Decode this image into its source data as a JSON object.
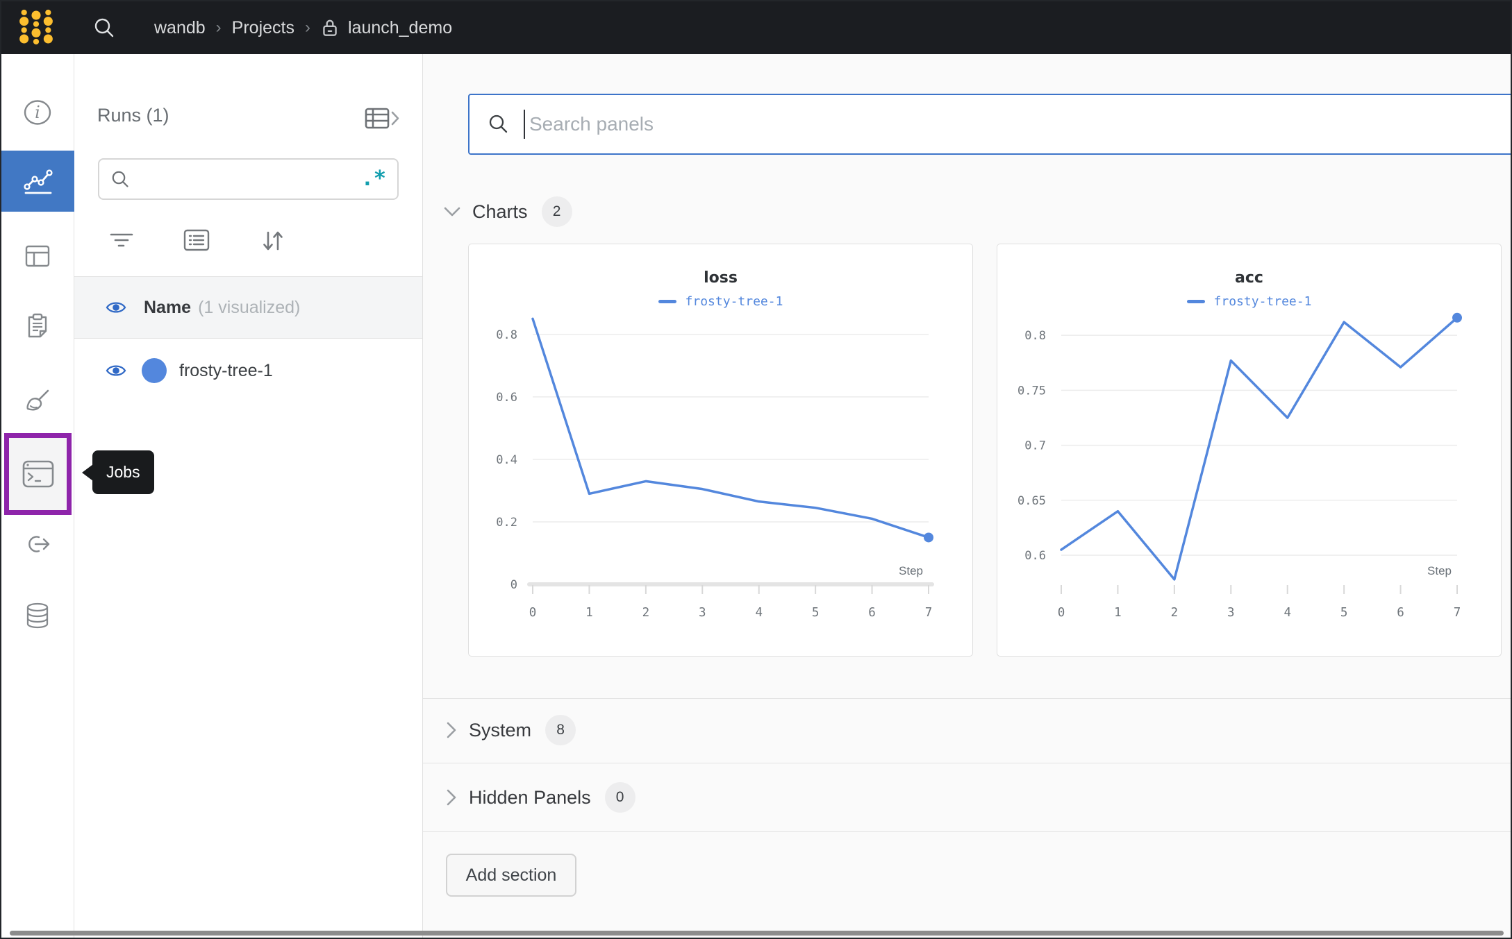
{
  "topbar": {
    "breadcrumb": {
      "org": "wandb",
      "section": "Projects",
      "project": "launch_demo",
      "separator": "›"
    }
  },
  "rail": {
    "tooltip": "Jobs"
  },
  "runs_panel": {
    "title": "Runs (1)",
    "search_value": "",
    "regex_label": ".*",
    "header_row": {
      "name": "Name",
      "annotation": "(1 visualized)"
    },
    "runs": [
      {
        "name": "frosty-tree-1"
      }
    ]
  },
  "main": {
    "search": {
      "placeholder": "Search panels",
      "value": ""
    },
    "sections": {
      "charts": {
        "label": "Charts",
        "count": "2"
      },
      "system": {
        "label": "System",
        "count": "8"
      },
      "hidden": {
        "label": "Hidden Panels",
        "count": "0"
      }
    },
    "add_section_label": "Add section"
  },
  "colors": {
    "run_blue": "#5387dd",
    "nav_active_blue": "#4178c4",
    "highlight_purple": "#8e24aa",
    "regex_teal": "#129eae",
    "topbar_bg": "#1b1d21",
    "logo_yellow": "#fcbe2f"
  },
  "chart_data": [
    {
      "type": "line",
      "title": "loss",
      "xlabel": "Step",
      "x": [
        0,
        1,
        2,
        3,
        4,
        5,
        6,
        7
      ],
      "series": [
        {
          "name": "frosty-tree-1",
          "color": "#5387dd",
          "values": [
            0.85,
            0.29,
            0.33,
            0.305,
            0.265,
            0.245,
            0.21,
            0.15
          ]
        }
      ],
      "yticks": [
        0,
        0.2,
        0.4,
        0.6,
        0.8
      ],
      "ylim": [
        0,
        0.855
      ],
      "xlim": [
        0,
        7
      ],
      "grid": true,
      "legend_position": "top"
    },
    {
      "type": "line",
      "title": "acc",
      "xlabel": "Step",
      "x": [
        0,
        1,
        2,
        3,
        4,
        5,
        6,
        7
      ],
      "series": [
        {
          "name": "frosty-tree-1",
          "color": "#5387dd",
          "values": [
            0.605,
            0.64,
            0.578,
            0.777,
            0.725,
            0.812,
            0.771,
            0.816
          ]
        }
      ],
      "yticks": [
        0.6,
        0.65,
        0.7,
        0.75,
        0.8
      ],
      "ylim": [
        0.5735,
        0.8165
      ],
      "xlim": [
        0,
        7
      ],
      "grid": true,
      "legend_position": "top"
    }
  ]
}
